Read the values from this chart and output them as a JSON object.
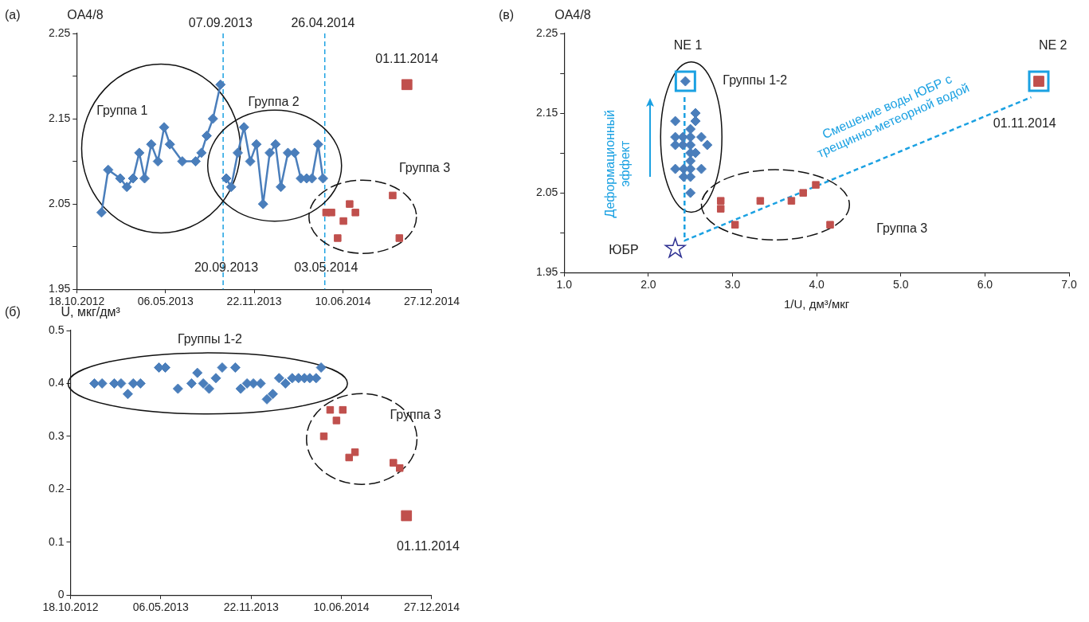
{
  "chart_data": [
    {
      "type": "line",
      "title": "(а)",
      "ylabel": "OA4/8",
      "xlim": [
        "2012-10-18",
        "2014-12-27"
      ],
      "xticks": [
        {
          "value": "2012-10-18",
          "label": "18.10.2012"
        },
        {
          "value": "2013-05-06",
          "label": "06.05.2013"
        },
        {
          "value": "2013-11-22",
          "label": "22.11.2013"
        },
        {
          "value": "2014-06-10",
          "label": "10.06.2014"
        },
        {
          "value": "2014-12-27",
          "label": "27.12.2014"
        }
      ],
      "ylim": [
        1.95,
        2.25
      ],
      "yticks": [
        1.95,
        {
          "value": 2.0,
          "label": null
        },
        2.05,
        {
          "value": 2.1,
          "label": null
        },
        2.15,
        {
          "value": 2.2,
          "label": null
        },
        2.25
      ],
      "series": [
        {
          "marker": "diamond",
          "color": "#4a7ebb",
          "x": [
            "2012-12-13",
            "2012-12-28",
            "2013-01-24",
            "2013-02-08",
            "2013-02-22",
            "2013-03-08",
            "2013-03-20",
            "2013-04-04",
            "2013-04-19",
            "2013-05-03",
            "2013-05-16",
            "2013-06-13",
            "2013-07-13",
            "2013-07-26",
            "2013-08-07",
            "2013-08-21",
            "2013-09-07"
          ],
          "values": [
            2.04,
            2.09,
            2.08,
            2.07,
            2.08,
            2.11,
            2.08,
            2.12,
            2.1,
            2.14,
            2.12,
            2.1,
            2.1,
            2.11,
            2.13,
            2.15,
            2.19
          ]
        },
        {
          "marker": "diamond",
          "color": "#4a7ebb",
          "x": [
            "2013-09-20",
            "2013-10-01",
            "2013-10-16",
            "2013-10-30",
            "2013-11-13",
            "2013-11-27",
            "2013-12-12",
            "2013-12-27",
            "2014-01-09",
            "2014-01-21",
            "2014-02-06",
            "2014-02-21",
            "2014-03-07",
            "2014-03-20",
            "2014-04-01",
            "2014-04-15",
            "2014-04-26"
          ],
          "values": [
            2.08,
            2.07,
            2.11,
            2.14,
            2.1,
            2.12,
            2.05,
            2.11,
            2.12,
            2.07,
            2.11,
            2.11,
            2.08,
            2.08,
            2.08,
            2.12,
            2.08
          ]
        },
        {
          "type": "scatter",
          "marker": "square",
          "color": "#c0504d",
          "x": [
            "2014-05-03",
            "2014-05-15",
            "2014-05-29",
            "2014-06-11",
            "2014-06-25",
            "2014-07-08",
            "2014-09-30",
            "2014-10-15"
          ],
          "values": [
            2.04,
            2.04,
            2.01,
            2.03,
            2.05,
            2.04,
            2.06,
            2.01
          ]
        },
        {
          "type": "scatter",
          "marker": "square",
          "color": "#c0504d",
          "x": [
            "2014-11-01"
          ],
          "values": [
            2.19
          ]
        }
      ],
      "ref_lines": [
        {
          "axis": "x",
          "value": "2013-09-13",
          "color": "#1ba1e2",
          "line_style": "dashed"
        },
        {
          "axis": "x",
          "value": "2014-04-30",
          "color": "#1ba1e2",
          "line_style": "dashed"
        }
      ],
      "annotations": [
        {
          "text": "07.09.2013",
          "x": "2013-09-07",
          "y": 2.25
        },
        {
          "text": "26.04.2014",
          "x": "2014-04-26",
          "y": 2.25
        },
        {
          "text": "20.09.2013",
          "x": "2013-09-20",
          "y": 1.975
        },
        {
          "text": "03.05.2014",
          "x": "2014-05-03",
          "y": 1.975
        },
        "Группа 1",
        "Группа 2",
        "Группа 3",
        "01.11.2014"
      ]
    },
    {
      "type": "scatter",
      "title": "(в)",
      "ylabel": "OA4/8",
      "xlabel": "1/U, дм³/мкг",
      "xlim": [
        1,
        7
      ],
      "xticks": [
        {
          "value": 1,
          "label": "1.0"
        },
        {
          "value": 2,
          "label": "2.0"
        },
        {
          "value": 3,
          "label": "3.0"
        },
        {
          "value": 4,
          "label": "4.0"
        },
        {
          "value": 5,
          "label": "5.0"
        },
        {
          "value": 6,
          "label": "6.0"
        },
        {
          "value": 7,
          "label": "7.0"
        }
      ],
      "ylim": [
        1.95,
        2.25
      ],
      "yticks": [
        1.95,
        {
          "value": 2.0,
          "label": null
        },
        2.05,
        {
          "value": 2.1,
          "label": null
        },
        2.15,
        {
          "value": 2.2,
          "label": null
        },
        2.25
      ],
      "series": [
        {
          "type": "line",
          "marker": "none",
          "line_style": "dashed",
          "color": "#1ba1e2",
          "x": [
            2.43,
            2.43,
            6.55
          ],
          "values": [
            2.17,
            1.99,
            2.17
          ]
        },
        {
          "marker": "diamond",
          "color": "#4a7ebb",
          "x": [
            2.44,
            2.56,
            2.32,
            2.56,
            2.5,
            2.32,
            2.41,
            2.5,
            2.63,
            2.32,
            2.41,
            2.5,
            2.7,
            2.5,
            2.56,
            2.5,
            2.32,
            2.42,
            2.5,
            2.63,
            2.42,
            2.5,
            2.5
          ],
          "values": [
            2.19,
            2.15,
            2.14,
            2.14,
            2.13,
            2.12,
            2.12,
            2.12,
            2.12,
            2.11,
            2.11,
            2.11,
            2.11,
            2.1,
            2.1,
            2.09,
            2.08,
            2.08,
            2.08,
            2.08,
            2.07,
            2.07,
            2.05
          ]
        },
        {
          "marker": "square",
          "color": "#c0504d",
          "x": [
            2.86,
            2.86,
            3.03,
            3.33,
            3.7,
            3.84,
            3.99,
            4.16
          ],
          "values": [
            2.04,
            2.03,
            2.01,
            2.04,
            2.04,
            2.05,
            2.06,
            2.01
          ]
        },
        {
          "marker": "square",
          "color": "#c0504d",
          "x": [
            6.64
          ],
          "values": [
            2.19
          ]
        },
        {
          "marker": "star",
          "color": "#2e3192",
          "x": [
            2.32
          ],
          "values": [
            1.98
          ]
        }
      ],
      "annotations": [
        "NE 1",
        "NE 2",
        "Группы 1-2",
        "01.11.2014",
        "Группа 3",
        "ЮБР",
        "Деформационный\nэффект",
        "Смешение воды ЮБР с\nтрещинно-метеорной водой"
      ]
    },
    {
      "type": "scatter",
      "title": "(б)",
      "ylabel": "U, мкг/дм³",
      "xlim": [
        "2012-10-18",
        "2014-12-27"
      ],
      "xticks": [
        {
          "value": "2012-10-18",
          "label": "18.10.2012"
        },
        {
          "value": "2013-05-06",
          "label": "06.05.2013"
        },
        {
          "value": "2013-11-22",
          "label": "22.11.2013"
        },
        {
          "value": "2014-06-10",
          "label": "10.06.2014"
        },
        {
          "value": "2014-12-27",
          "label": "27.12.2014"
        }
      ],
      "ylim": [
        0,
        0.5
      ],
      "yticks": [
        0,
        0.1,
        0.2,
        0.3,
        0.4,
        0.5
      ],
      "series": [
        {
          "marker": "diamond",
          "color": "#4a7ebb",
          "x": [
            "2012-12-10",
            "2012-12-27",
            "2013-01-23",
            "2013-02-07",
            "2013-02-22",
            "2013-03-06",
            "2013-03-22",
            "2013-05-02",
            "2013-05-16",
            "2013-06-13",
            "2013-07-13",
            "2013-07-26",
            "2013-08-08",
            "2013-08-21",
            "2013-09-05",
            "2013-09-19",
            "2013-10-18",
            "2013-10-30",
            "2013-11-13",
            "2013-11-27",
            "2013-12-13",
            "2013-12-27",
            "2014-01-09",
            "2014-01-23",
            "2014-02-06",
            "2014-02-21",
            "2014-03-07",
            "2014-03-20",
            "2014-04-01",
            "2014-04-15",
            "2014-04-26"
          ],
          "values": [
            0.4,
            0.4,
            0.4,
            0.4,
            0.38,
            0.4,
            0.4,
            0.43,
            0.43,
            0.39,
            0.4,
            0.42,
            0.4,
            0.39,
            0.41,
            0.43,
            0.43,
            0.39,
            0.4,
            0.4,
            0.4,
            0.37,
            0.38,
            0.41,
            0.4,
            0.41,
            0.41,
            0.41,
            0.41,
            0.41,
            0.43
          ]
        },
        {
          "marker": "square",
          "color": "#c0504d",
          "x": [
            "2014-05-02",
            "2014-05-16",
            "2014-05-30",
            "2014-06-13",
            "2014-06-27",
            "2014-07-10",
            "2014-10-03",
            "2014-10-17"
          ],
          "values": [
            0.3,
            0.35,
            0.33,
            0.35,
            0.26,
            0.27,
            0.25,
            0.24
          ]
        },
        {
          "marker": "square",
          "color": "#c0504d",
          "x": [
            "2014-11-01"
          ],
          "values": [
            0.15
          ]
        }
      ],
      "annotations": [
        "Группы 1-2",
        "Группа 3",
        "01.11.2014"
      ]
    }
  ]
}
